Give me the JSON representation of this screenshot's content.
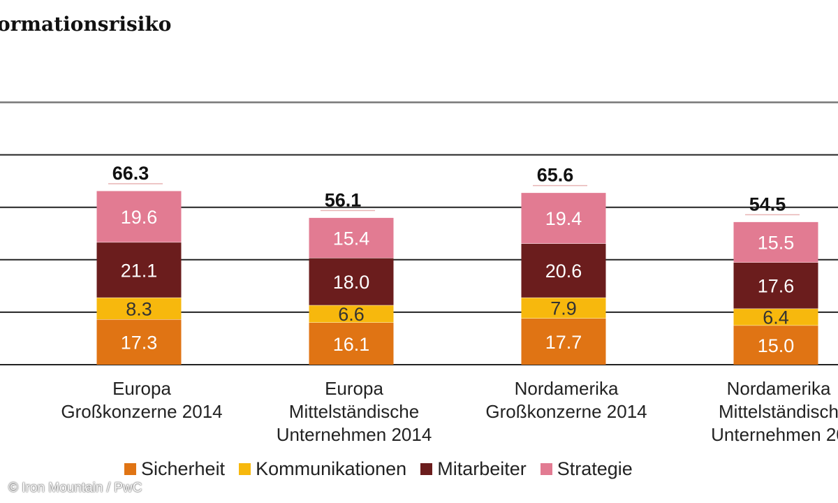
{
  "chart_data": {
    "type": "bar",
    "stacked": true,
    "title": "ormationsrisiko",
    "categories": [
      [
        "Europa",
        "Großkonzerne 2014"
      ],
      [
        "Europa",
        "Mittelständische",
        "Unternehmen 2014"
      ],
      [
        "Nordamerika",
        "Großkonzerne 2014"
      ],
      [
        "Nordamerika",
        "Mittelständisch",
        "Unternehmen 20"
      ]
    ],
    "series": [
      {
        "name": "Sicherheit",
        "color": "#e07414",
        "values": [
          17.3,
          16.1,
          17.7,
          15.0
        ]
      },
      {
        "name": "Kommunikationen",
        "color": "#f7b80d",
        "values": [
          8.3,
          6.6,
          7.9,
          6.4
        ]
      },
      {
        "name": "Mitarbeiter",
        "color": "#6b1d1d",
        "values": [
          21.1,
          18.0,
          20.6,
          17.6
        ]
      },
      {
        "name": "Strategie",
        "color": "#e27b92",
        "values": [
          19.6,
          15.4,
          19.4,
          15.5
        ]
      }
    ],
    "totals": [
      "66.3",
      "56.1",
      "65.6",
      "54.5"
    ],
    "segment_labels": [
      [
        "17.3",
        "16.1",
        "17.7",
        "15.0"
      ],
      [
        "8.3",
        "6.6",
        "7.9",
        "6.4"
      ],
      [
        "21.1",
        "18.0",
        "20.6",
        "17.6"
      ],
      [
        "19.6",
        "15.4",
        "19.4",
        "15.5"
      ]
    ],
    "ylim": [
      0,
      100
    ],
    "gridlines": [
      0,
      20,
      40,
      60,
      80,
      100
    ],
    "legend_position": "bottom"
  },
  "credit": "© Iron Mountain / PwC"
}
